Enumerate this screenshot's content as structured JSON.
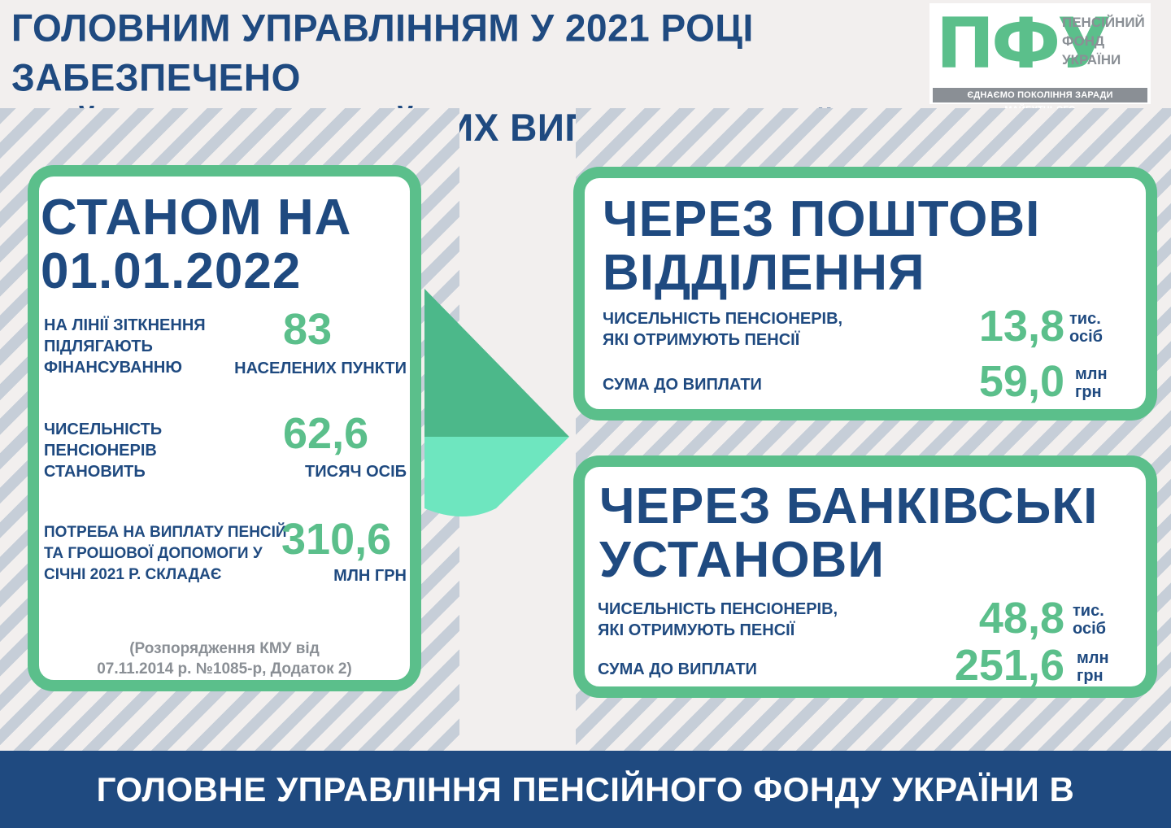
{
  "header": {
    "title_line1": "ГОЛОВНИМ УПРАВЛІННЯМ У 2021 РОЦІ ЗАБЕЗПЕЧЕНО",
    "title_line2": "ЗДІЙСНЕННЯ ПЕНСІЙНИХ ВИПЛАТ НА ЛІНІЇ ЗІТКНЕННЯ"
  },
  "logo": {
    "mark": "ПФУ",
    "line1": "ПЕНСІЙНИЙ",
    "line2": "ФОНД",
    "line3": "УКРАЇНИ",
    "slogan": "ЄДНАЄМО ПОКОЛІННЯ ЗАРАДИ МАЙБУТНЬОГО"
  },
  "left_card": {
    "title_line1": "СТАНОМ НА",
    "title_line2": "01.01.2022",
    "items": [
      {
        "label_lines": [
          "НА ЛІНІЇ ЗІТКНЕННЯ",
          "ПІДЛЯГАЮТЬ",
          "ФІНАНСУВАННЮ"
        ],
        "value": "83",
        "unit": "НАСЕЛЕНИХ ПУНКТИ"
      },
      {
        "label_lines": [
          "ЧИСЕЛЬНІСТЬ",
          "ПЕНСІОНЕРІВ",
          "СТАНОВИТЬ"
        ],
        "value": "62,6",
        "unit": "ТИСЯЧ ОСІБ"
      },
      {
        "label_lines": [
          "ПОТРЕБА НА ВИПЛАТУ ПЕНСІЙ",
          "ТА ГРОШОВОЇ ДОПОМОГИ У",
          "СІЧНІ 2021 Р. СКЛАДАЄ"
        ],
        "value": "310,6",
        "unit": "МЛН ГРН"
      }
    ],
    "note_line1": "(Розпорядження КМУ від",
    "note_line2": "07.11.2014 р.  №1085-р, Додаток 2)"
  },
  "post_card": {
    "title_line1": "ЧЕРЕЗ ПОШТОВІ",
    "title_line2": "ВІДДІЛЕННЯ",
    "count_label_line1": "ЧИСЕЛЬНІСТЬ ПЕНСІОНЕРІВ,",
    "count_label_line2": "ЯКІ ОТРИМУЮТЬ ПЕНСІЇ",
    "count_value": "13,8",
    "count_unit_line1": "тис.",
    "count_unit_line2": "осіб",
    "sum_label": "СУМА ДО ВИПЛАТИ",
    "sum_value": "59,0",
    "sum_unit_line1": "млн",
    "sum_unit_line2": "грн"
  },
  "bank_card": {
    "title_line1": "ЧЕРЕЗ БАНКІВСЬКІ",
    "title_line2": "УСТАНОВИ",
    "count_label_line1": "ЧИСЕЛЬНІСТЬ ПЕНСІОНЕРІВ,",
    "count_label_line2": "ЯКІ ОТРИМУЮТЬ ПЕНСІЇ",
    "count_value": "48,8",
    "count_unit_line1": "тис.",
    "count_unit_line2": "осіб",
    "sum_label": "СУМА ДО ВИПЛАТИ",
    "sum_value": "251,6",
    "sum_unit_line1": "млн",
    "sum_unit_line2": "грн"
  },
  "footer": {
    "text": "ГОЛОВНЕ УПРАВЛІННЯ ПЕНСІЙНОГО ФОНДУ УКРАЇНИ В ДОНЕЦЬКІЙ ОБЛАСТІ"
  },
  "colors": {
    "primary_blue": "#1f4a80",
    "accent_green": "#5bbf8b",
    "arrow_light": "#6ee6bf",
    "stripe": "#c6ced8",
    "gray": "#8a8f95"
  }
}
